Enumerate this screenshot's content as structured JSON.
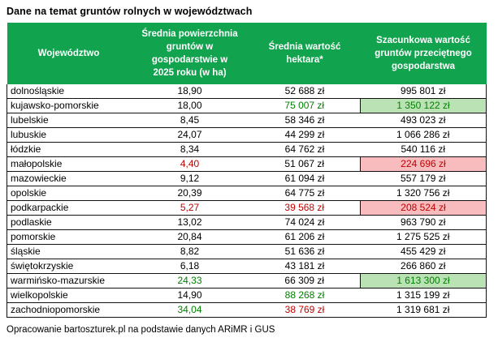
{
  "page": {
    "title": "Dane na temat gruntów rolnych w województwach",
    "source_note": "Opracowanie bartoszturek.pl na podstawie danych ARiMR i GUS"
  },
  "colors": {
    "header_bg": "#12a34f",
    "header_text": "#ffffff",
    "green_text": "#008000",
    "red_text": "#c00000",
    "green_cell_bg": "#bbe2b5",
    "red_cell_bg": "#f8bcbe"
  },
  "chart_data": {
    "type": "table",
    "title": "Dane na temat gruntów rolnych w województwach",
    "columns": [
      "Województwo",
      "Średnia powierzchnia gruntów w gospodarstwie w 2025 roku (w ha)",
      "Średnia wartość hektara*",
      "Szacunkowa wartość gruntów przeciętnego gospodarstwa"
    ],
    "rows": [
      {
        "wojewodztwo": "dolnośląskie",
        "area_ha": "18,90",
        "price_per_ha": "52 688 zł",
        "farm_value": "995 801 zł",
        "area_style": "none",
        "price_style": "none",
        "value_style": "none"
      },
      {
        "wojewodztwo": "kujawsko-pomorskie",
        "area_ha": "18,00",
        "price_per_ha": "75 007 zł",
        "farm_value": "1 350 122 zł",
        "area_style": "none",
        "price_style": "green",
        "value_style": "green-bg"
      },
      {
        "wojewodztwo": "lubelskie",
        "area_ha": "8,45",
        "price_per_ha": "58 346 zł",
        "farm_value": "493 023 zł",
        "area_style": "none",
        "price_style": "none",
        "value_style": "none"
      },
      {
        "wojewodztwo": "lubuskie",
        "area_ha": "24,07",
        "price_per_ha": "44 299 zł",
        "farm_value": "1 066 286 zł",
        "area_style": "none",
        "price_style": "none",
        "value_style": "none"
      },
      {
        "wojewodztwo": "łódzkie",
        "area_ha": "8,34",
        "price_per_ha": "64 762 zł",
        "farm_value": "540 116 zł",
        "area_style": "none",
        "price_style": "none",
        "value_style": "none"
      },
      {
        "wojewodztwo": "małopolskie",
        "area_ha": "4,40",
        "price_per_ha": "51 067 zł",
        "farm_value": "224 696 zł",
        "area_style": "red",
        "price_style": "none",
        "value_style": "red-bg"
      },
      {
        "wojewodztwo": "mazowieckie",
        "area_ha": "9,12",
        "price_per_ha": "61 094 zł",
        "farm_value": "557 179 zł",
        "area_style": "none",
        "price_style": "none",
        "value_style": "none"
      },
      {
        "wojewodztwo": "opolskie",
        "area_ha": "20,39",
        "price_per_ha": "64 775 zł",
        "farm_value": "1 320 756 zł",
        "area_style": "none",
        "price_style": "none",
        "value_style": "none"
      },
      {
        "wojewodztwo": "podkarpackie",
        "area_ha": "5,27",
        "price_per_ha": "39 568 zł",
        "farm_value": "208 524 zł",
        "area_style": "red",
        "price_style": "red",
        "value_style": "red-bg"
      },
      {
        "wojewodztwo": "podlaskie",
        "area_ha": "13,02",
        "price_per_ha": "74 024 zł",
        "farm_value": "963 790 zł",
        "area_style": "none",
        "price_style": "none",
        "value_style": "none"
      },
      {
        "wojewodztwo": "pomorskie",
        "area_ha": "20,84",
        "price_per_ha": "61 206 zł",
        "farm_value": "1 275 525 zł",
        "area_style": "none",
        "price_style": "none",
        "value_style": "none"
      },
      {
        "wojewodztwo": "śląskie",
        "area_ha": "8,82",
        "price_per_ha": "51 636 zł",
        "farm_value": "455 429 zł",
        "area_style": "none",
        "price_style": "none",
        "value_style": "none"
      },
      {
        "wojewodztwo": "świętokrzyskie",
        "area_ha": "6,18",
        "price_per_ha": "43 181 zł",
        "farm_value": "266 860 zł",
        "area_style": "none",
        "price_style": "none",
        "value_style": "none"
      },
      {
        "wojewodztwo": "warmińsko-mazurskie",
        "area_ha": "24,33",
        "price_per_ha": "66 309 zł",
        "farm_value": "1 613 300 zł",
        "area_style": "green",
        "price_style": "none",
        "value_style": "green-bg"
      },
      {
        "wojewodztwo": "wielkopolskie",
        "area_ha": "14,90",
        "price_per_ha": "88 268 zł",
        "farm_value": "1 315 199 zł",
        "area_style": "none",
        "price_style": "green",
        "value_style": "none"
      },
      {
        "wojewodztwo": "zachodniopomorskie",
        "area_ha": "34,04",
        "price_per_ha": "38 769 zł",
        "farm_value": "1 319 681 zł",
        "area_style": "green",
        "price_style": "red",
        "value_style": "none"
      }
    ]
  }
}
